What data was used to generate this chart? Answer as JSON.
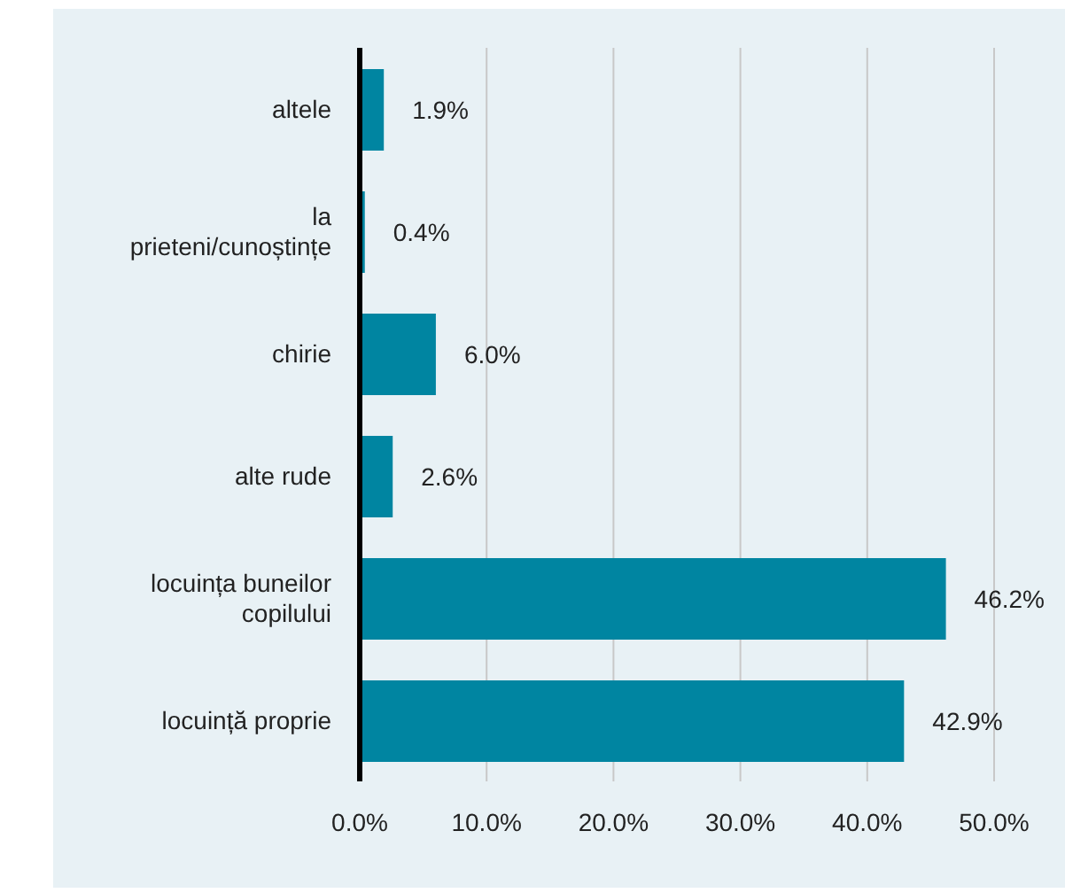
{
  "chart_data": {
    "type": "bar",
    "orientation": "horizontal",
    "categories": [
      "altele",
      "la prieteni/cunoștințe",
      "chirie",
      "alte rude",
      "locuința buneilor copilului",
      "locuință proprie"
    ],
    "values": [
      1.9,
      0.4,
      6.0,
      2.6,
      46.2,
      42.9
    ],
    "value_labels": [
      "1.9%",
      "0.4%",
      "6.0%",
      "2.6%",
      "46.2%",
      "42.9%"
    ],
    "color": "#0085a1",
    "xlim": [
      0,
      50
    ],
    "xticks": [
      {
        "value": 0,
        "label": "0.0%"
      },
      {
        "value": 10,
        "label": "10.0%"
      },
      {
        "value": 20,
        "label": "20.0%"
      },
      {
        "value": 30,
        "label": "30.0%"
      },
      {
        "value": 40,
        "label": "40.0%"
      },
      {
        "value": 50,
        "label": "50.0%"
      }
    ],
    "grid": "x"
  }
}
